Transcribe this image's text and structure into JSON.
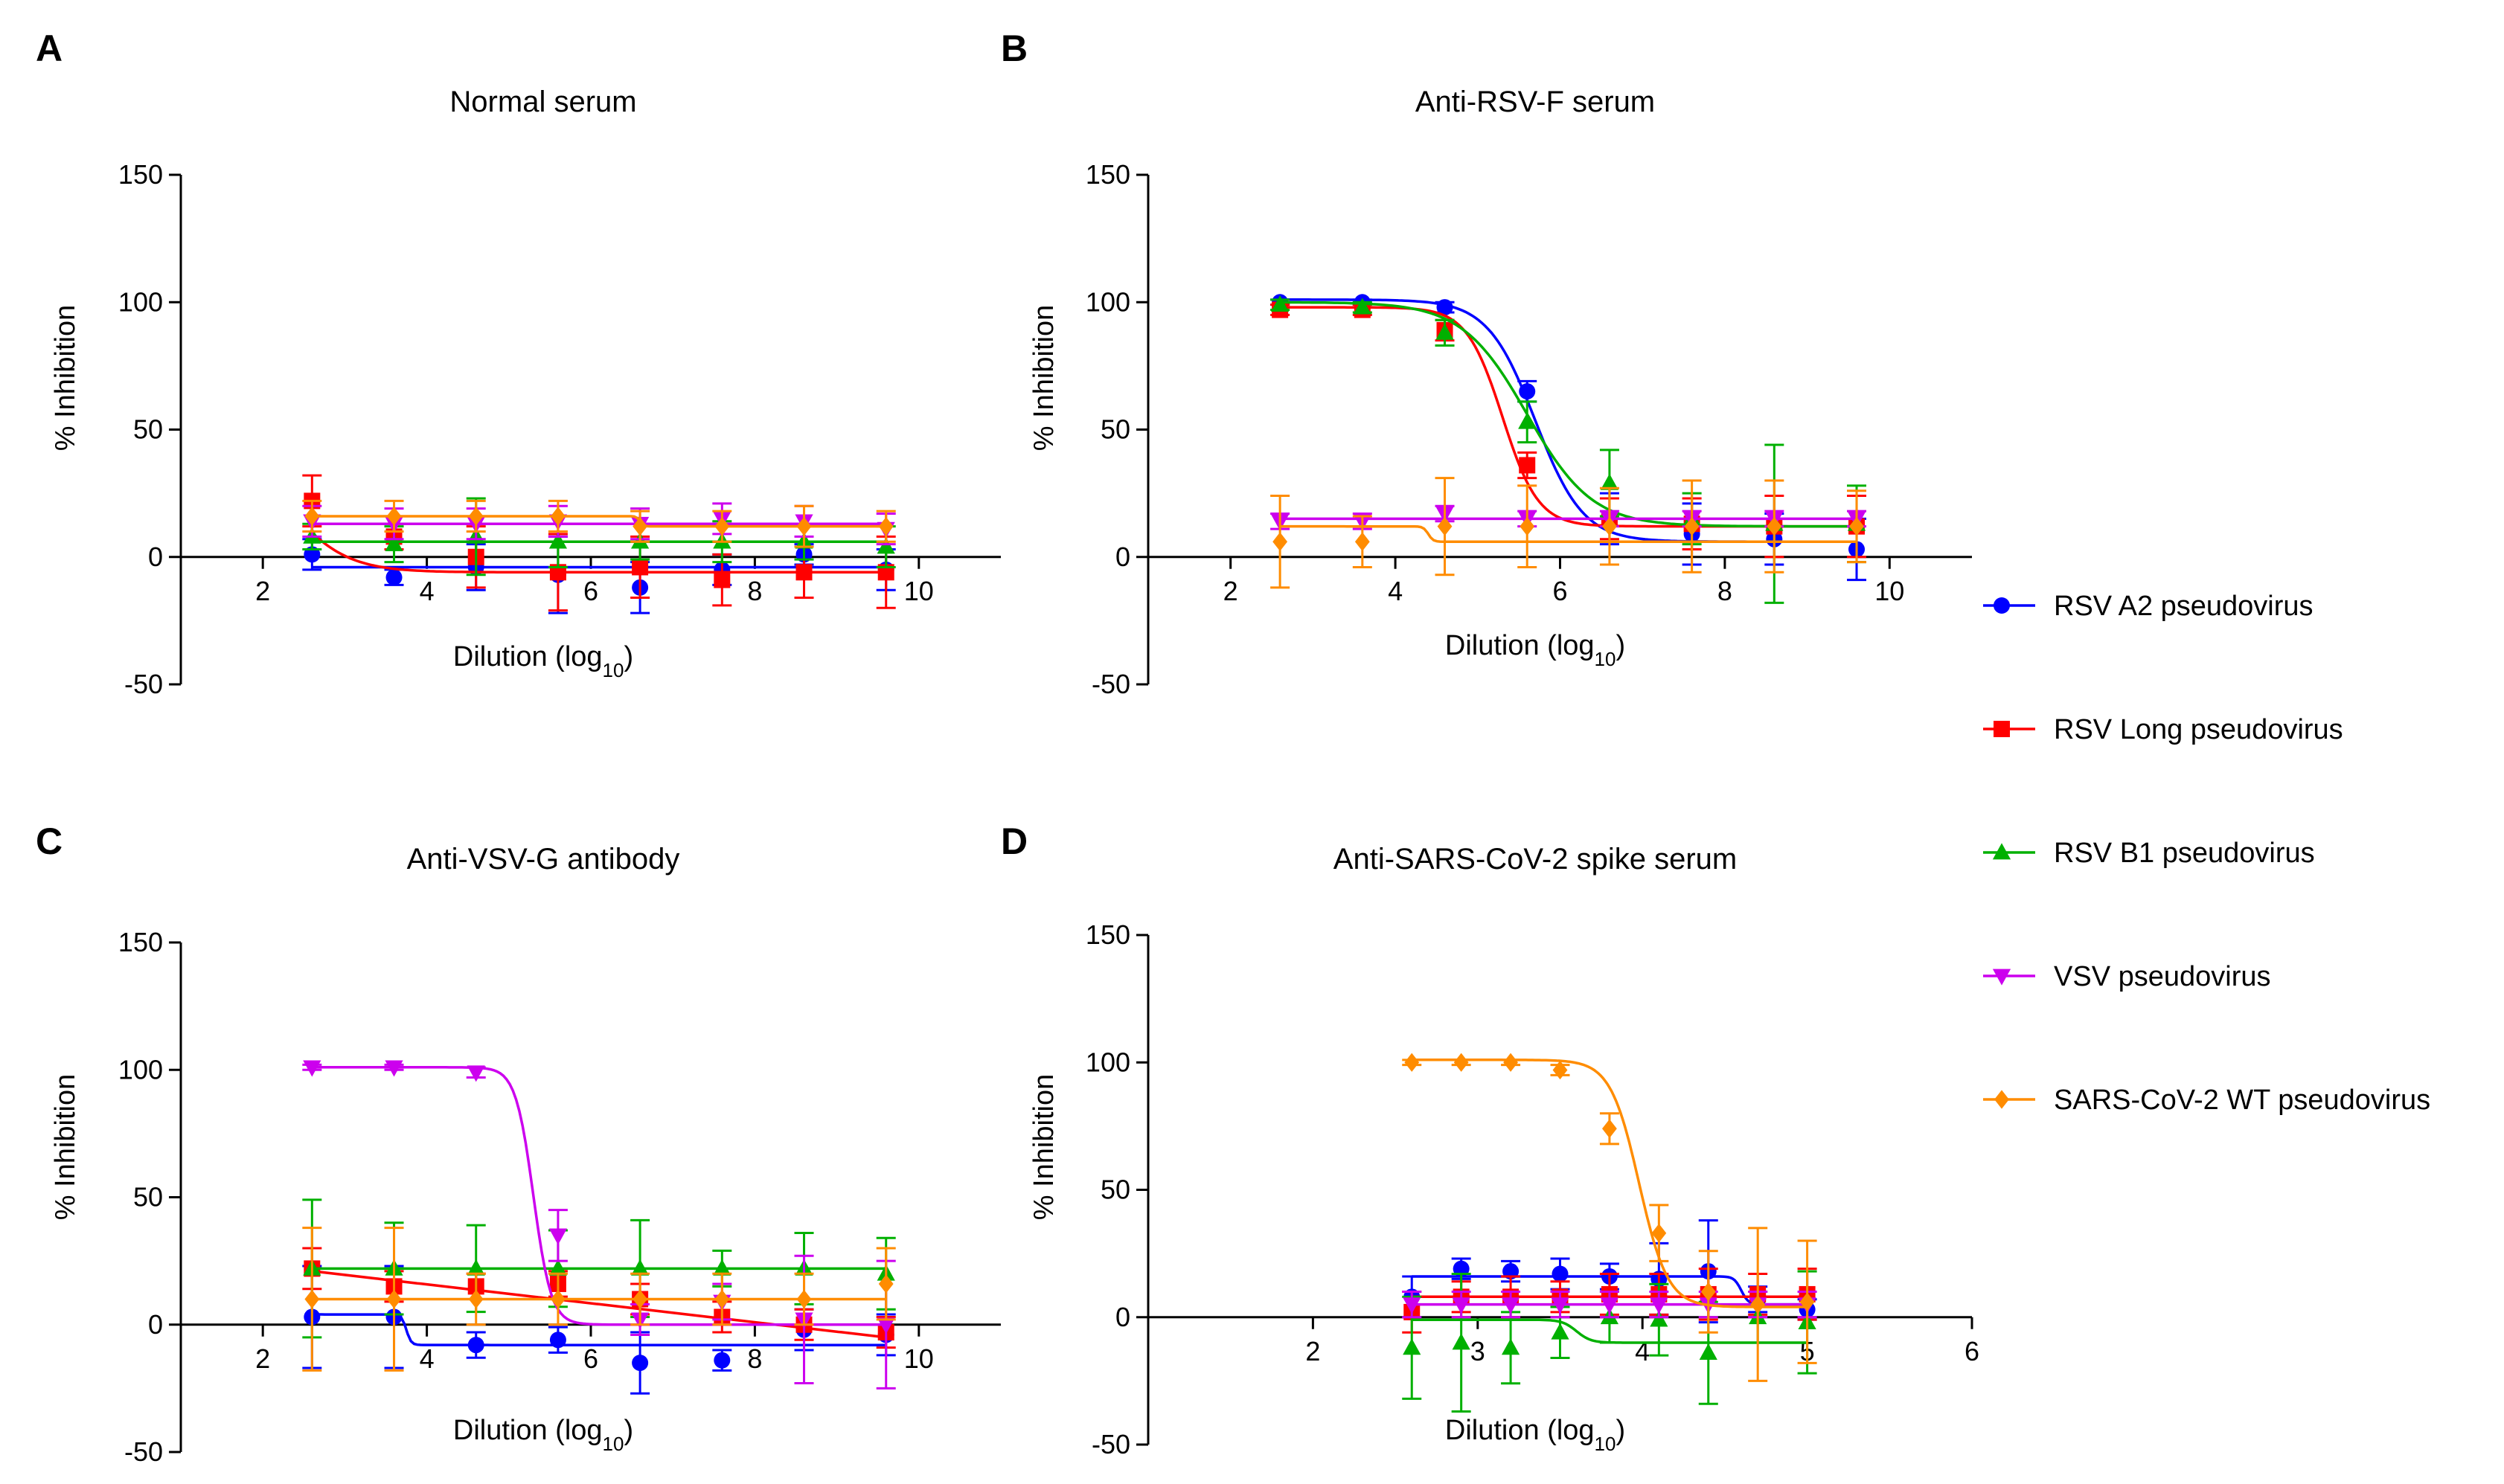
{
  "figure": {
    "panel_letters": [
      "A",
      "B",
      "C",
      "D"
    ]
  },
  "colors": {
    "RSV A2 pseudovirus": "#0000ff",
    "RSV Long pseudovirus": "#ff0000",
    "RSV B1 pseudovirus": "#00b000",
    "VSV pseudovirus": "#cc00ee",
    "SARS-CoV-2 WT pseudovirus": "#ff8c00"
  },
  "legend": [
    {
      "name": "RSV A2 pseudovirus",
      "marker": "circle"
    },
    {
      "name": "RSV Long pseudovirus",
      "marker": "square"
    },
    {
      "name": "RSV B1 pseudovirus",
      "marker": "triangle-up"
    },
    {
      "name": "VSV pseudovirus",
      "marker": "triangle-down"
    },
    {
      "name": "SARS-CoV-2 WT pseudovirus",
      "marker": "diamond"
    }
  ],
  "chart_data": [
    {
      "panel": "A",
      "type": "scatter",
      "title": "Normal serum",
      "xlabel": "Dilution (log10)",
      "xlabel_main": "Dilution (log",
      "xlabel_sub": "10",
      "xlabel_end": ")",
      "ylabel": "% Inhibition",
      "xlim": [
        1,
        11
      ],
      "ylim": [
        -50,
        150
      ],
      "xticks": [
        "2",
        "4",
        "6",
        "8",
        "10"
      ],
      "yticks": [
        "150",
        "100",
        "50",
        "0",
        "-50"
      ],
      "x": [
        2.6,
        3.6,
        4.6,
        5.6,
        6.6,
        7.6,
        8.6,
        9.6
      ],
      "series": [
        {
          "name": "RSV A2 pseudovirus",
          "values": [
            1,
            -8,
            -4,
            -7,
            -12,
            -5,
            1,
            -5
          ],
          "err": [
            6,
            3,
            9,
            15,
            10,
            6,
            4,
            8
          ],
          "fit": {
            "type": "flat",
            "y": -4
          }
        },
        {
          "name": "RSV Long pseudovirus",
          "values": [
            22,
            8,
            0,
            -6,
            -4,
            -9,
            -6,
            -6
          ],
          "err": [
            10,
            5,
            12,
            15,
            12,
            10,
            10,
            14
          ],
          "fit": {
            "type": "sigmoid",
            "bottom": -6,
            "top": 45,
            "x50": 2.3,
            "slope": 1.2
          }
        },
        {
          "name": "RSV B1 pseudovirus",
          "values": [
            8,
            5,
            8,
            6,
            6,
            6,
            6,
            4
          ],
          "err": [
            5,
            7,
            15,
            10,
            7,
            8,
            7,
            8
          ],
          "fit": {
            "type": "flat",
            "y": 6
          }
        },
        {
          "name": "VSV pseudovirus",
          "values": [
            14,
            13,
            13,
            14,
            13,
            15,
            14,
            11
          ],
          "err": [
            6,
            6,
            6,
            6,
            6,
            6,
            6,
            6
          ],
          "fit": {
            "type": "flat",
            "y": 13
          }
        },
        {
          "name": "SARS-CoV-2 WT pseudovirus",
          "values": [
            16,
            16,
            16,
            16,
            12,
            12,
            12,
            12
          ],
          "err": [
            6,
            6,
            6,
            6,
            6,
            6,
            8,
            6
          ],
          "fit": {
            "type": "sigmoid",
            "bottom": 12,
            "top": 16,
            "x50": 6.6,
            "slope": 20
          }
        }
      ]
    },
    {
      "panel": "B",
      "type": "scatter",
      "title": "Anti-RSV-F serum",
      "xlabel": "Dilution (log10)",
      "xlabel_main": "Dilution (log",
      "xlabel_sub": "10",
      "xlabel_end": ")",
      "ylabel": "% Inhibition",
      "xlim": [
        1,
        11
      ],
      "ylim": [
        -50,
        150
      ],
      "xticks": [
        "2",
        "4",
        "6",
        "8",
        "10"
      ],
      "yticks": [
        "150",
        "100",
        "50",
        "0",
        "-50"
      ],
      "x": [
        2.6,
        3.6,
        4.6,
        5.6,
        6.6,
        7.6,
        8.6,
        9.6
      ],
      "series": [
        {
          "name": "RSV A2 pseudovirus",
          "values": [
            100,
            100,
            98,
            65,
            15,
            9,
            7,
            3
          ],
          "err": [
            1,
            1,
            2,
            4,
            10,
            12,
            10,
            12
          ],
          "fit": {
            "type": "sigmoid",
            "bottom": 6,
            "top": 101,
            "x50": 5.7,
            "slope": 1.5
          }
        },
        {
          "name": "RSV Long pseudovirus",
          "values": [
            97,
            97,
            89,
            36,
            15,
            13,
            12,
            12
          ],
          "err": [
            2,
            2,
            4,
            5,
            8,
            10,
            12,
            12
          ],
          "fit": {
            "type": "sigmoid",
            "bottom": 12,
            "top": 98,
            "x50": 5.3,
            "slope": 2
          }
        },
        {
          "name": "RSV B1 pseudovirus",
          "values": [
            99,
            98,
            88,
            53,
            29,
            15,
            13,
            13
          ],
          "err": [
            2,
            2,
            5,
            8,
            13,
            10,
            31,
            15
          ],
          "fit": {
            "type": "sigmoid",
            "bottom": 12,
            "top": 100,
            "x50": 5.6,
            "slope": 1.1
          }
        },
        {
          "name": "VSV pseudovirus",
          "values": [
            14,
            14,
            17,
            15,
            15,
            15,
            15,
            15
          ],
          "err": [
            3,
            3,
            3,
            3,
            3,
            3,
            3,
            3
          ],
          "fit": {
            "type": "flat",
            "y": 15
          }
        },
        {
          "name": "SARS-CoV-2 WT pseudovirus",
          "values": [
            6,
            6,
            12,
            12,
            12,
            12,
            12,
            12
          ],
          "err": [
            18,
            10,
            19,
            16,
            15,
            18,
            18,
            14
          ],
          "fit": {
            "type": "sigmoid",
            "bottom": 6,
            "top": 12,
            "x50": 4.4,
            "slope": 15
          }
        }
      ]
    },
    {
      "panel": "C",
      "type": "scatter",
      "title": "Anti-VSV-G antibody",
      "xlabel": "Dilution (log10)",
      "xlabel_main": "Dilution (log",
      "xlabel_sub": "10",
      "xlabel_end": ")",
      "ylabel": "% Inhibition",
      "xlim": [
        1,
        11
      ],
      "ylim": [
        -50,
        150
      ],
      "xticks": [
        "2",
        "4",
        "6",
        "8",
        "10"
      ],
      "yticks": [
        "150",
        "100",
        "50",
        "0",
        "-50"
      ],
      "x": [
        2.6,
        3.6,
        4.6,
        5.6,
        6.6,
        7.6,
        8.6,
        9.6
      ],
      "series": [
        {
          "name": "RSV A2 pseudovirus",
          "values": [
            3,
            3,
            -8,
            -6,
            -15,
            -14,
            -2,
            -4
          ],
          "err": [
            20,
            20,
            5,
            5,
            12,
            4,
            8,
            8
          ],
          "fit": {
            "type": "sigmoid",
            "bottom": -8,
            "top": 4,
            "x50": 3.75,
            "slope": 15
          }
        },
        {
          "name": "RSV Long pseudovirus",
          "values": [
            22,
            15,
            15,
            16,
            10,
            3,
            0,
            -3
          ],
          "err": [
            8,
            6,
            5,
            5,
            6,
            6,
            6,
            6
          ],
          "fit": {
            "type": "line",
            "from": 21,
            "to": -5
          }
        },
        {
          "name": "RSV B1 pseudovirus",
          "values": [
            22,
            22,
            22,
            22,
            22,
            22,
            22,
            20
          ],
          "err": [
            27,
            18,
            17,
            15,
            19,
            7,
            14,
            14
          ],
          "fit": {
            "type": "flat",
            "y": 22
          }
        },
        {
          "name": "VSV pseudovirus",
          "values": [
            101,
            101,
            99,
            35,
            2,
            9,
            2,
            0
          ],
          "err": [
            1,
            1,
            2,
            10,
            6,
            7,
            25,
            25
          ],
          "fit": {
            "type": "sigmoid",
            "bottom": 0,
            "top": 101,
            "x50": 5.3,
            "slope": 4
          }
        },
        {
          "name": "SARS-CoV-2 WT pseudovirus",
          "values": [
            10,
            10,
            10,
            10,
            10,
            10,
            10,
            16
          ],
          "err": [
            28,
            28,
            10,
            10,
            10,
            10,
            10,
            14
          ],
          "fit": {
            "type": "flat",
            "y": 10
          }
        }
      ]
    },
    {
      "panel": "D",
      "type": "scatter",
      "title": "Anti-SARS-CoV-2 spike serum",
      "xlabel": "Dilution (log10)",
      "xlabel_main": "Dilution (log",
      "xlabel_sub": "10",
      "xlabel_end": ")",
      "ylabel": "% Inhibition",
      "xlim": [
        1,
        6
      ],
      "ylim": [
        -50,
        150
      ],
      "xticks": [
        "2",
        "3",
        "4",
        "5",
        "6"
      ],
      "yticks": [
        "150",
        "100",
        "50",
        "0",
        "-50"
      ],
      "x": [
        2.6,
        2.9,
        3.2,
        3.5,
        3.8,
        4.1,
        4.4,
        4.7,
        5.0
      ],
      "series": [
        {
          "name": "RSV A2 pseudovirus",
          "values": [
            8,
            19,
            18,
            17,
            16,
            15,
            18,
            7,
            3
          ],
          "err": [
            8,
            4,
            4,
            6,
            5,
            14,
            20,
            5,
            4
          ],
          "fit": {
            "type": "sigmoid",
            "bottom": 5,
            "top": 16,
            "x50": 4.6,
            "slope": 20
          }
        },
        {
          "name": "RSV Long pseudovirus",
          "values": [
            2,
            8,
            8,
            8,
            9,
            9,
            9,
            9,
            9
          ],
          "err": [
            8,
            6,
            8,
            6,
            8,
            8,
            10,
            8,
            10
          ],
          "fit": {
            "type": "flat",
            "y": 8
          }
        },
        {
          "name": "RSV B1 pseudovirus",
          "values": [
            -12,
            -10,
            -12,
            -6,
            0,
            -1,
            -14,
            0,
            -2
          ],
          "err": [
            20,
            27,
            14,
            10,
            10,
            14,
            20,
            10,
            20
          ],
          "fit": {
            "type": "sigmoid",
            "bottom": -1,
            "top": -10,
            "x50": 3.6,
            "slope": -10
          }
        },
        {
          "name": "VSV pseudovirus",
          "values": [
            5,
            5,
            5,
            5,
            5,
            5,
            5,
            5,
            5
          ],
          "err": [
            5,
            5,
            5,
            5,
            5,
            5,
            5,
            5,
            5
          ],
          "fit": {
            "type": "flat",
            "y": 5
          }
        },
        {
          "name": "SARS-CoV-2 WT pseudovirus",
          "values": [
            100,
            100,
            100,
            97,
            74,
            33,
            10,
            5,
            6
          ],
          "err": [
            1,
            1,
            1,
            2,
            6,
            11,
            16,
            30,
            24
          ],
          "fit": {
            "type": "sigmoid",
            "bottom": 4,
            "top": 101,
            "x50": 3.98,
            "slope": 5
          }
        }
      ]
    }
  ]
}
